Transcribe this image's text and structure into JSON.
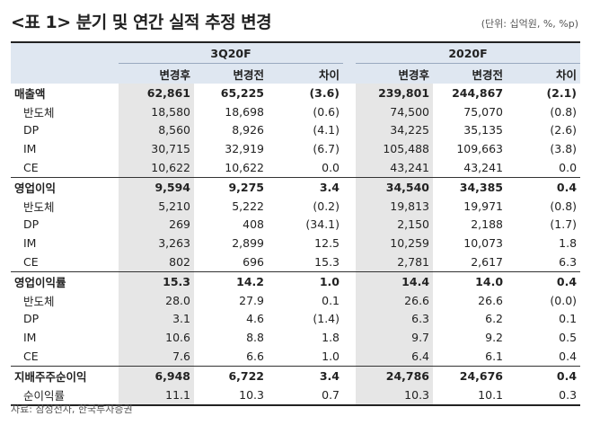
{
  "title": "<표 1> 분기 및 연간 실적 추정 변경",
  "unit": "(단위: 십억원, %, %p)",
  "groups": [
    "3Q20F",
    "2020F"
  ],
  "subheaders": [
    "변경후",
    "변경전",
    "차이",
    "변경후",
    "변경전",
    "차이"
  ],
  "rows": [
    {
      "label": "매출액",
      "main": true,
      "v": [
        "62,861",
        "65,225",
        "(3.6)",
        "239,801",
        "244,867",
        "(2.1)"
      ]
    },
    {
      "label": "반도체",
      "v": [
        "18,580",
        "18,698",
        "(0.6)",
        "74,500",
        "75,070",
        "(0.8)"
      ]
    },
    {
      "label": "DP",
      "v": [
        "8,560",
        "8,926",
        "(4.1)",
        "34,225",
        "35,135",
        "(2.6)"
      ]
    },
    {
      "label": "IM",
      "v": [
        "30,715",
        "32,919",
        "(6.7)",
        "105,488",
        "109,663",
        "(3.8)"
      ]
    },
    {
      "label": "CE",
      "v": [
        "10,622",
        "10,622",
        "0.0",
        "43,241",
        "43,241",
        "0.0"
      ]
    },
    {
      "label": "영업이익",
      "main": true,
      "v": [
        "9,594",
        "9,275",
        "3.4",
        "34,540",
        "34,385",
        "0.4"
      ]
    },
    {
      "label": "반도체",
      "v": [
        "5,210",
        "5,222",
        "(0.2)",
        "19,813",
        "19,971",
        "(0.8)"
      ]
    },
    {
      "label": "DP",
      "v": [
        "269",
        "408",
        "(34.1)",
        "2,150",
        "2,188",
        "(1.7)"
      ]
    },
    {
      "label": "IM",
      "v": [
        "3,263",
        "2,899",
        "12.5",
        "10,259",
        "10,073",
        "1.8"
      ]
    },
    {
      "label": "CE",
      "v": [
        "802",
        "696",
        "15.3",
        "2,781",
        "2,617",
        "6.3"
      ]
    },
    {
      "label": "영업이익률",
      "main": true,
      "v": [
        "15.3",
        "14.2",
        "1.0",
        "14.4",
        "14.0",
        "0.4"
      ]
    },
    {
      "label": "반도체",
      "v": [
        "28.0",
        "27.9",
        "0.1",
        "26.6",
        "26.6",
        "(0.0)"
      ]
    },
    {
      "label": "DP",
      "v": [
        "3.1",
        "4.6",
        "(1.4)",
        "6.3",
        "6.2",
        "0.1"
      ]
    },
    {
      "label": "IM",
      "v": [
        "10.6",
        "8.8",
        "1.8",
        "9.7",
        "9.2",
        "0.5"
      ]
    },
    {
      "label": "CE",
      "v": [
        "7.6",
        "6.6",
        "1.0",
        "6.4",
        "6.1",
        "0.4"
      ]
    },
    {
      "label": "지배주주순이익",
      "main": true,
      "v": [
        "6,948",
        "6,722",
        "3.4",
        "24,786",
        "24,676",
        "0.4"
      ]
    },
    {
      "label": "순이익률",
      "v": [
        "11.1",
        "10.3",
        "0.7",
        "10.3",
        "10.1",
        "0.3"
      ]
    }
  ],
  "source": "자료: 삼성전자, 한국투자증권"
}
